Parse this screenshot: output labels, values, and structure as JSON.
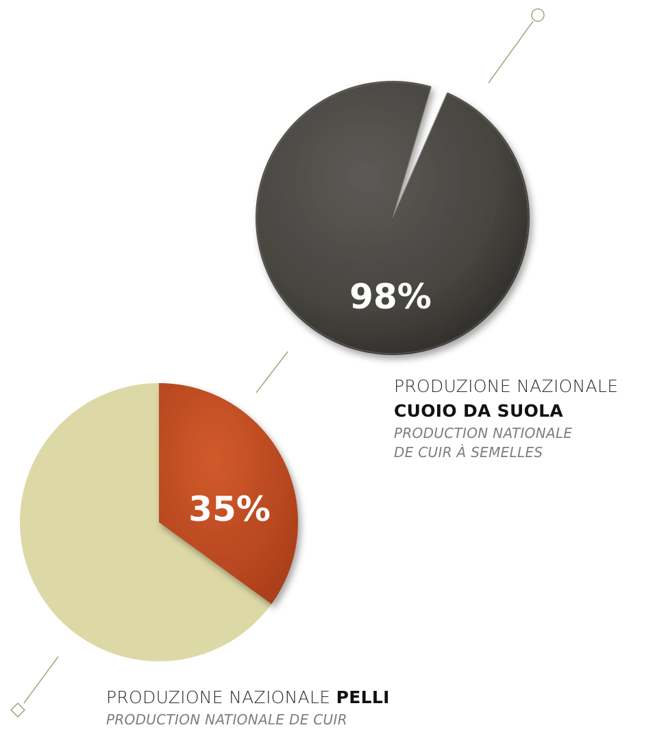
{
  "chart_data": [
    {
      "type": "pie",
      "id": "cuoio",
      "value_percent": 98,
      "label": "98%",
      "slices": [
        {
          "name": "",
          "value": 98
        },
        {
          "name": "",
          "value": 2
        }
      ],
      "caption": {
        "line1": "PRODUZIONE NAZIONALE",
        "line2_bold": "CUOIO DA SUOLA",
        "fr_line1": "PRODUCTION NATIONALE",
        "fr_line2": "DE CUIR À SEMELLES"
      },
      "colors": {
        "main": "#4a4845",
        "rest": "#ffffff"
      }
    },
    {
      "type": "pie",
      "id": "pelli",
      "value_percent": 35,
      "label": "35%",
      "slices": [
        {
          "name": "",
          "value": 35
        },
        {
          "name": "",
          "value": 65
        }
      ],
      "caption": {
        "line1": "PRODUZIONE NAZIONALE ",
        "line1_bold": "PELLI",
        "fr_line1": "PRODUCTION NATIONALE DE CUIR"
      },
      "colors": {
        "main": "#c2481f",
        "rest": "#ddd9a6"
      }
    }
  ],
  "decor": {
    "line_color": "#a7a07a"
  }
}
